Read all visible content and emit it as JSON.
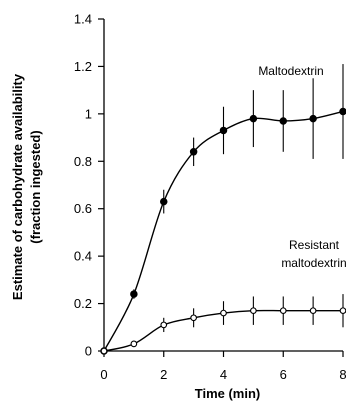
{
  "chart_data": {
    "type": "line",
    "title": "",
    "xlabel": "Time (min)",
    "ylabel_lines": [
      "Estimate of carbohydrate availability",
      "(fraction ingested)"
    ],
    "xlim": [
      0,
      8
    ],
    "ylim": [
      0,
      1.4
    ],
    "x_ticks": [
      0,
      2,
      4,
      6,
      8
    ],
    "y_ticks": [
      0,
      0.2,
      0.4,
      0.6,
      0.8,
      1,
      1.2,
      1.4
    ],
    "x_tick_labels": [
      "0",
      "2",
      "4",
      "6",
      "8"
    ],
    "y_tick_labels": [
      "0",
      "0.2",
      "0.4",
      "0.6",
      "0.8",
      "1",
      "1.2",
      "1.4"
    ],
    "grid": false,
    "series": [
      {
        "name": "Maltodextrin",
        "label_lines": [
          "Maltodextrin"
        ],
        "marker": "filled-circle",
        "color": "#000000",
        "x": [
          0,
          1,
          2,
          3,
          4,
          5,
          6,
          7,
          8
        ],
        "y": [
          0,
          0.24,
          0.63,
          0.84,
          0.93,
          0.98,
          0.97,
          0.98,
          1.01
        ],
        "err": [
          0,
          0.02,
          0.05,
          0.06,
          0.1,
          0.12,
          0.13,
          0.17,
          0.2
        ]
      },
      {
        "name": "Resistant maltodextrin",
        "label_lines": [
          "Resistant",
          "maltodextrin"
        ],
        "marker": "open-circle",
        "color": "#000000",
        "x": [
          0,
          1,
          2,
          3,
          4,
          5,
          6,
          7,
          8
        ],
        "y": [
          0,
          0.03,
          0.11,
          0.14,
          0.16,
          0.17,
          0.17,
          0.17,
          0.17
        ],
        "err": [
          0,
          0.01,
          0.03,
          0.04,
          0.05,
          0.06,
          0.06,
          0.06,
          0.07
        ]
      }
    ]
  }
}
